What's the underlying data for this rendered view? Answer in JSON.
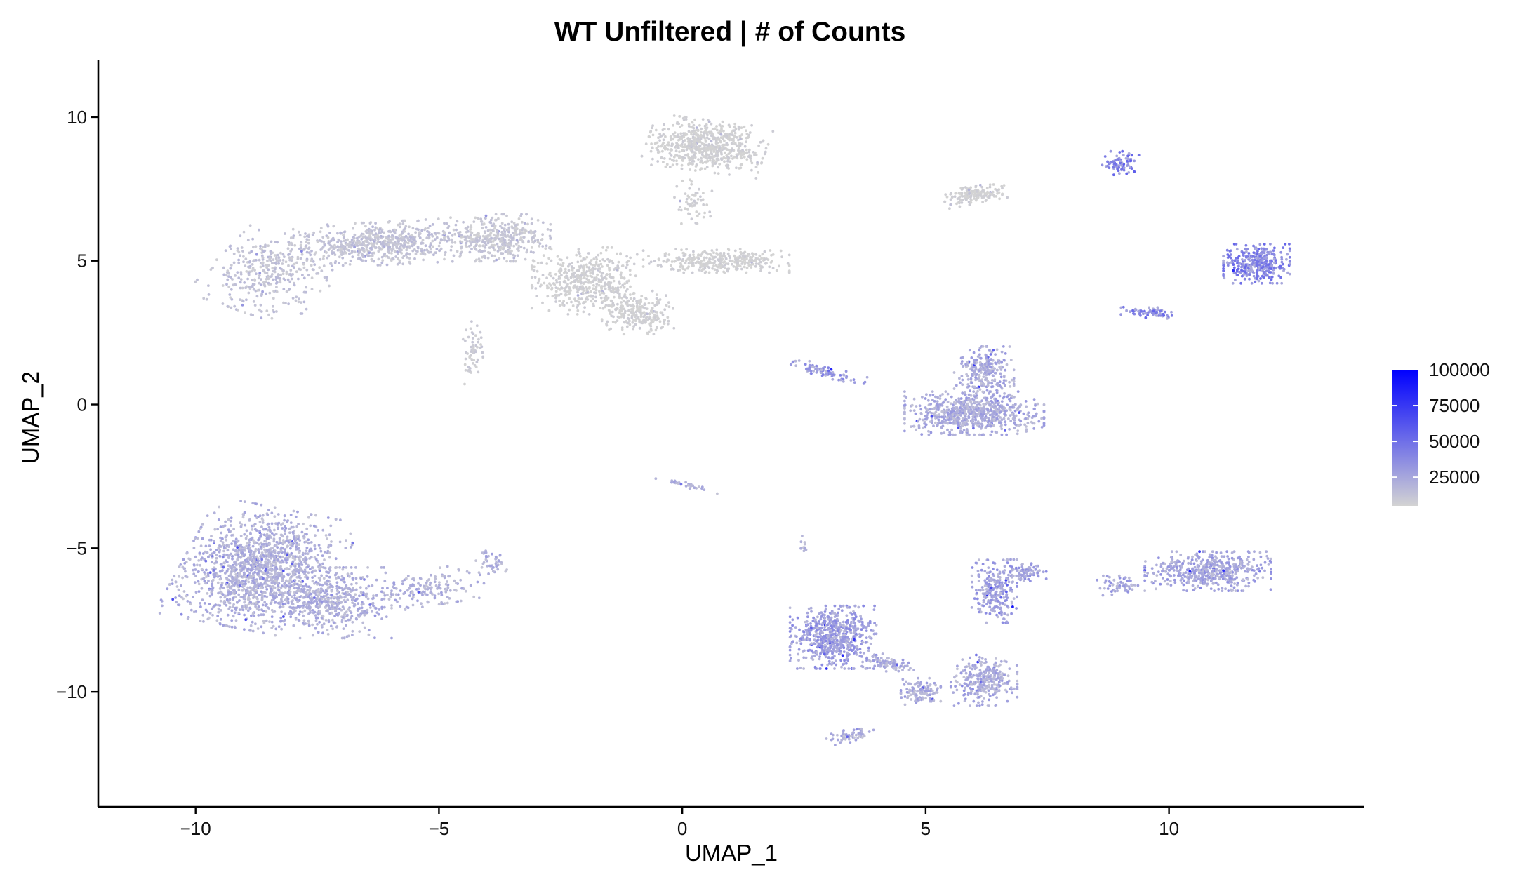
{
  "chart_data": {
    "type": "scatter",
    "title": "WT Unfiltered | # of Counts",
    "xlabel": "UMAP_1",
    "ylabel": "UMAP_2",
    "xlim": [
      -12.0,
      14.0
    ],
    "ylim": [
      -14.0,
      12.0
    ],
    "xticks": [
      -10,
      -5,
      0,
      5,
      10
    ],
    "xtick_labels": [
      "−10",
      "−5",
      "0",
      "5",
      "10"
    ],
    "yticks": [
      -10,
      -5,
      0,
      5,
      10
    ],
    "ytick_labels": [
      "−10",
      "−5",
      "0",
      "5",
      "10"
    ],
    "grid": false,
    "legend": {
      "placement": "right",
      "type": "colorbar",
      "range": [
        5000,
        100000
      ],
      "ticks": [
        25000,
        50000,
        75000,
        100000
      ],
      "tick_labels": [
        "25000",
        "50000",
        "75000",
        "100000"
      ],
      "color_low": "#d3d3d3",
      "color_high": "#0000ff"
    },
    "clusters": [
      {
        "x": -8.7,
        "y": -5.7,
        "sx": 1.15,
        "sy": 1.55,
        "rot": -18,
        "n": 1500,
        "val": 20000
      },
      {
        "x": -7.2,
        "y": -6.9,
        "sx": 0.9,
        "sy": 0.9,
        "rot": 0,
        "n": 500,
        "val": 20000
      },
      {
        "x": -5.3,
        "y": -6.4,
        "sx": 0.9,
        "sy": 0.45,
        "rot": 15,
        "n": 160,
        "val": 20000
      },
      {
        "x": -3.9,
        "y": -5.5,
        "sx": 0.25,
        "sy": 0.3,
        "rot": 0,
        "n": 40,
        "val": 20000
      },
      {
        "x": -8.4,
        "y": 4.6,
        "sx": 0.9,
        "sy": 1.1,
        "rot": -30,
        "n": 380,
        "val": 12000
      },
      {
        "x": -6.2,
        "y": 5.6,
        "sx": 1.2,
        "sy": 0.55,
        "rot": 5,
        "n": 600,
        "val": 12000
      },
      {
        "x": -3.8,
        "y": 5.8,
        "sx": 0.8,
        "sy": 0.6,
        "rot": 0,
        "n": 400,
        "val": 10000
      },
      {
        "x": -2.0,
        "y": 4.3,
        "sx": 0.8,
        "sy": 0.85,
        "rot": 0,
        "n": 480,
        "val": 6000
      },
      {
        "x": -0.9,
        "y": 3.2,
        "sx": 0.55,
        "sy": 0.55,
        "rot": 0,
        "n": 260,
        "val": 6000
      },
      {
        "x": 0.7,
        "y": 5.0,
        "sx": 1.1,
        "sy": 0.3,
        "rot": 0,
        "n": 340,
        "val": 6000
      },
      {
        "x": 0.5,
        "y": 9.0,
        "sx": 0.9,
        "sy": 0.65,
        "rot": -12,
        "n": 650,
        "val": 6000
      },
      {
        "x": 0.2,
        "y": 7.0,
        "sx": 0.3,
        "sy": 0.6,
        "rot": 0,
        "n": 60,
        "val": 6000
      },
      {
        "x": -4.3,
        "y": 1.8,
        "sx": 0.15,
        "sy": 0.8,
        "rot": 0,
        "n": 60,
        "val": 8000
      },
      {
        "x": 6.0,
        "y": 7.3,
        "sx": 0.5,
        "sy": 0.22,
        "rot": 18,
        "n": 160,
        "val": 6000
      },
      {
        "x": 6.0,
        "y": -0.3,
        "sx": 1.05,
        "sy": 0.55,
        "rot": 0,
        "n": 700,
        "val": 22000
      },
      {
        "x": 6.2,
        "y": 1.2,
        "sx": 0.45,
        "sy": 0.6,
        "rot": 0,
        "n": 260,
        "val": 22000
      },
      {
        "x": 3.0,
        "y": 1.1,
        "sx": 0.6,
        "sy": 0.15,
        "rot": -25,
        "n": 80,
        "val": 30000
      },
      {
        "x": 11.8,
        "y": 4.9,
        "sx": 0.5,
        "sy": 0.5,
        "rot": 0,
        "n": 340,
        "val": 38000
      },
      {
        "x": 9.6,
        "y": 3.2,
        "sx": 0.45,
        "sy": 0.15,
        "rot": -12,
        "n": 60,
        "val": 38000
      },
      {
        "x": 9.0,
        "y": 8.4,
        "sx": 0.3,
        "sy": 0.3,
        "rot": 0,
        "n": 80,
        "val": 40000
      },
      {
        "x": 10.8,
        "y": -5.8,
        "sx": 0.95,
        "sy": 0.5,
        "rot": 0,
        "n": 520,
        "val": 25000
      },
      {
        "x": 9.0,
        "y": -6.3,
        "sx": 0.35,
        "sy": 0.25,
        "rot": 0,
        "n": 60,
        "val": 25000
      },
      {
        "x": 3.1,
        "y": -8.1,
        "sx": 0.65,
        "sy": 0.8,
        "rot": 0,
        "n": 620,
        "val": 28000
      },
      {
        "x": 6.2,
        "y": -9.6,
        "sx": 0.5,
        "sy": 0.65,
        "rot": 0,
        "n": 300,
        "val": 22000
      },
      {
        "x": 4.9,
        "y": -10.0,
        "sx": 0.3,
        "sy": 0.35,
        "rot": 0,
        "n": 120,
        "val": 22000
      },
      {
        "x": 4.2,
        "y": -9.0,
        "sx": 0.45,
        "sy": 0.2,
        "rot": -20,
        "n": 90,
        "val": 22000
      },
      {
        "x": 6.4,
        "y": -6.5,
        "sx": 0.35,
        "sy": 0.8,
        "rot": 0,
        "n": 240,
        "val": 26000
      },
      {
        "x": 7.0,
        "y": -5.8,
        "sx": 0.35,
        "sy": 0.3,
        "rot": 0,
        "n": 90,
        "val": 26000
      },
      {
        "x": 3.4,
        "y": -11.5,
        "sx": 0.4,
        "sy": 0.18,
        "rot": 30,
        "n": 60,
        "val": 20000
      },
      {
        "x": 0.1,
        "y": -2.8,
        "sx": 0.5,
        "sy": 0.07,
        "rot": -20,
        "n": 30,
        "val": 20000
      },
      {
        "x": 2.5,
        "y": -4.9,
        "sx": 0.07,
        "sy": 0.25,
        "rot": 0,
        "n": 10,
        "val": 20000
      }
    ]
  }
}
